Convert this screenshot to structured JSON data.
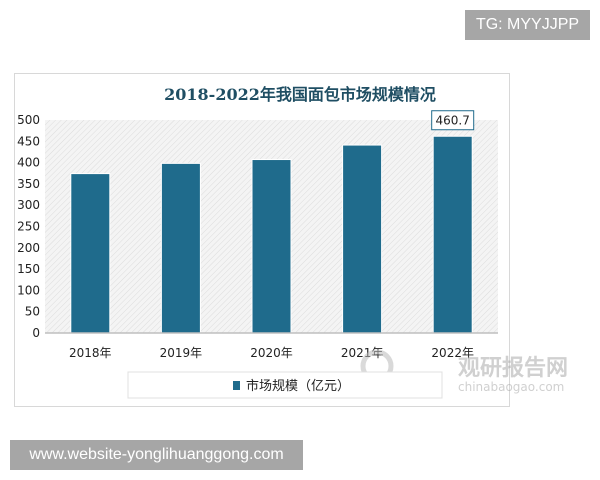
{
  "overlay": {
    "tg_label": "TG: MYYJJPP",
    "website_label": "www.website-yonglihuanggong.com",
    "watermark_cn": "观研报告网",
    "watermark_en": "chinabaogao.com"
  },
  "colors": {
    "bar": "#1f6b8c",
    "title": "#1f4e63",
    "tag_bg": "#a6a6a6"
  },
  "chart_data": {
    "type": "bar",
    "title": "2018-2022年我国面包市场规模情况",
    "categories": [
      "2018年",
      "2019年",
      "2020年",
      "2021年",
      "2022年"
    ],
    "series": [
      {
        "name": "市场规模（亿元）",
        "values": [
          373,
          397,
          406,
          440,
          460.7
        ]
      }
    ],
    "data_labels": [
      "",
      "",
      "",
      "",
      "460.7"
    ],
    "yticks": [
      "0",
      "50",
      "100",
      "150",
      "200",
      "250",
      "300",
      "350",
      "400",
      "450",
      "500"
    ],
    "ylim": [
      0,
      500
    ],
    "grid": false,
    "legend": "bottom"
  }
}
